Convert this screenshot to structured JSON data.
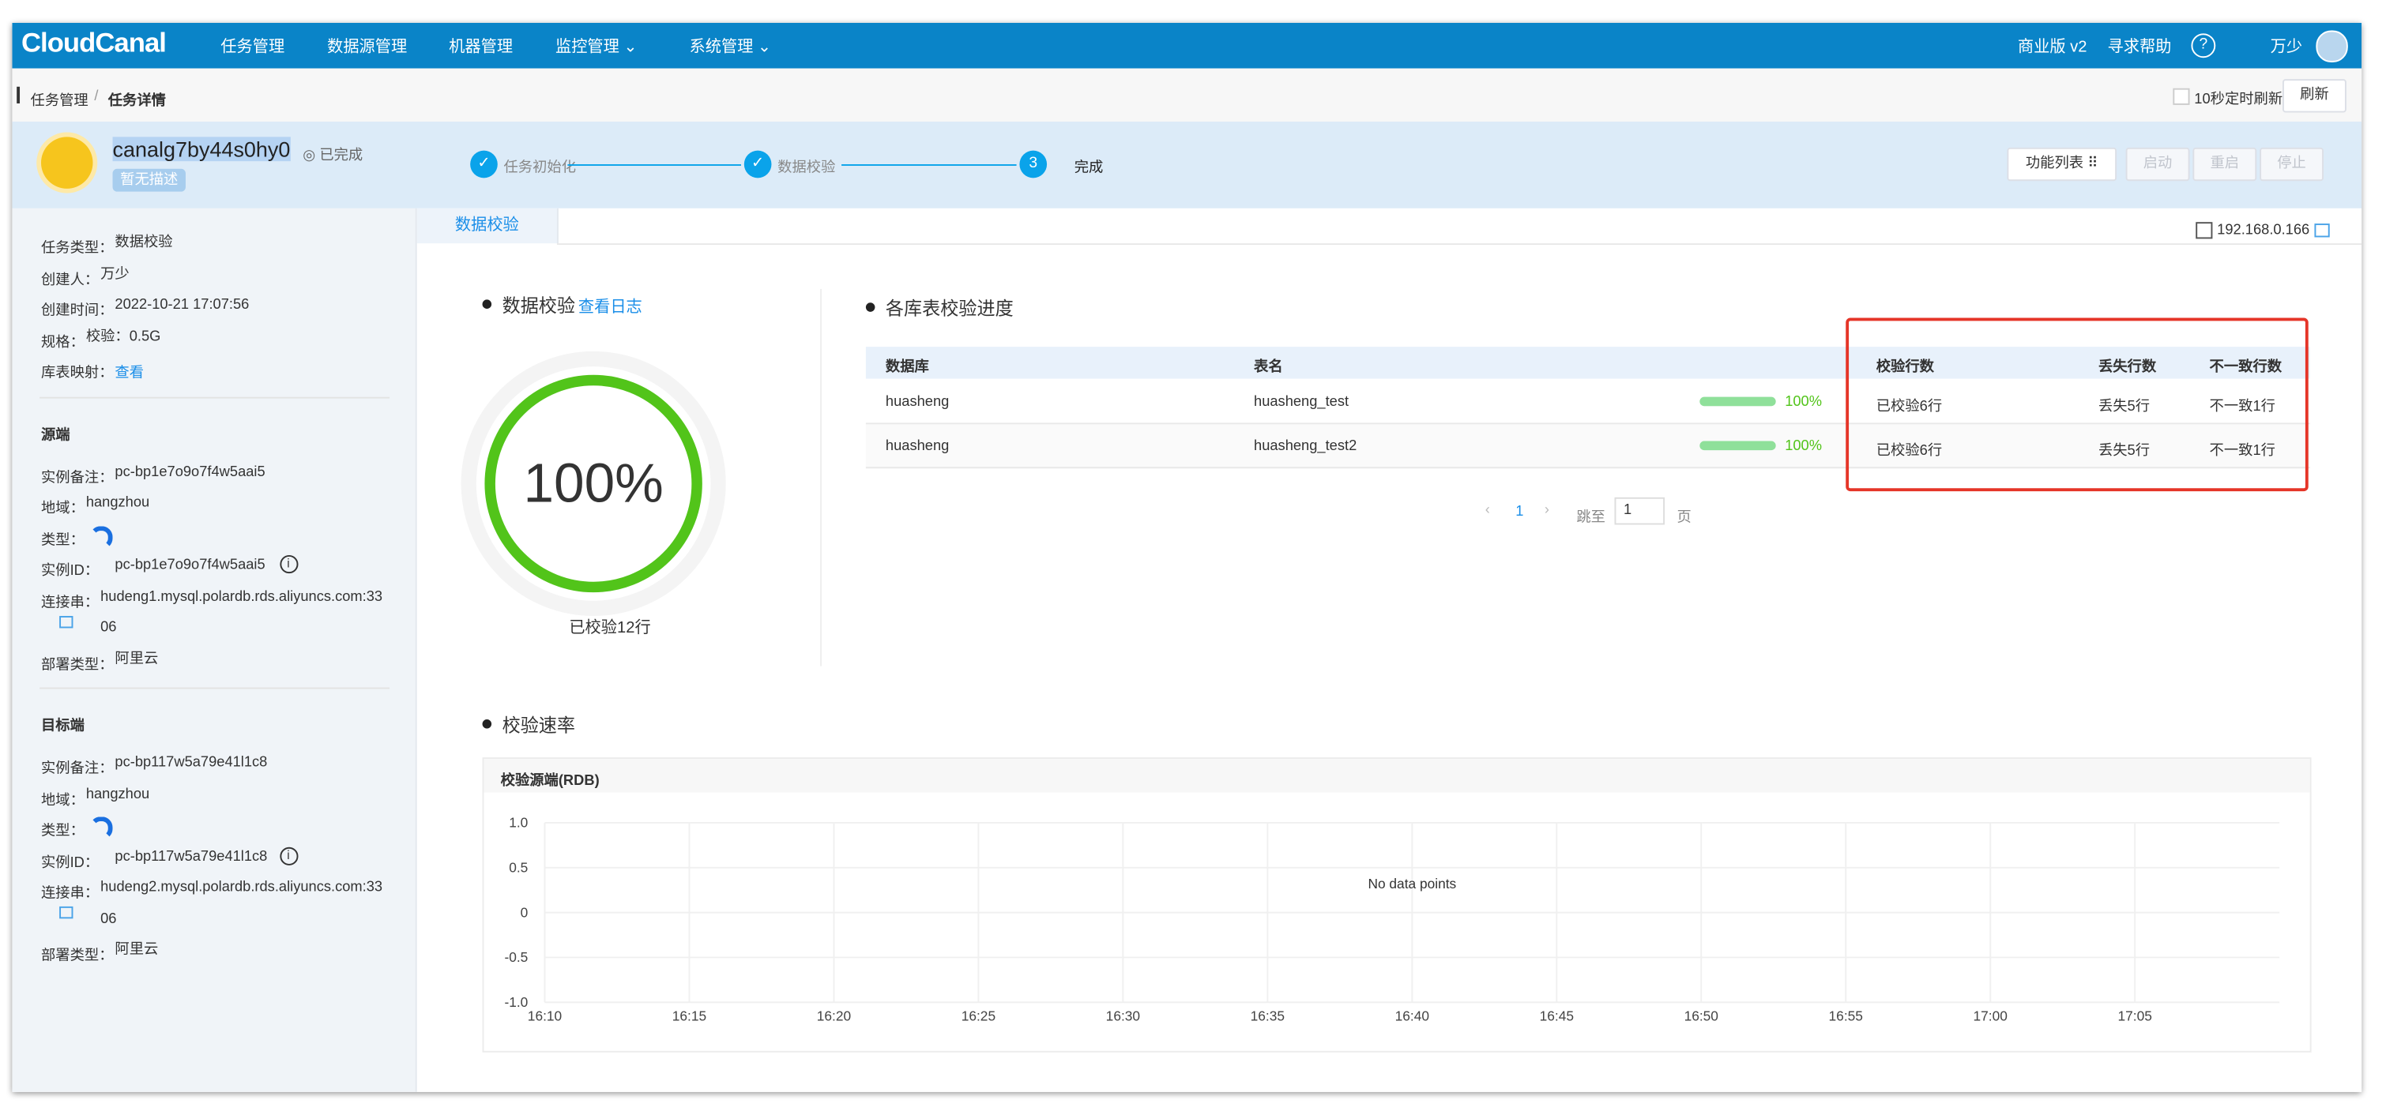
{
  "nav": {
    "logo": "CloudCanal",
    "menu": [
      "任务管理",
      "数据源管理",
      "机器管理",
      "监控管理",
      "系统管理"
    ],
    "edition": "商业版 v2",
    "help": "寻求帮助",
    "help_icon": "?",
    "user": "万少"
  },
  "breadcrumb": [
    "任务管理",
    "任务详情"
  ],
  "auto_refresh": "10秒定时刷新",
  "refresh": "刷新",
  "task": {
    "name": "canalg7by44s0hy0",
    "status": "已完成",
    "description": "暂无描述",
    "steps": [
      {
        "label": "任务初始化"
      },
      {
        "label": "数据校验"
      },
      {
        "number": "3",
        "label": "完成"
      }
    ],
    "buttons": [
      "功能列表",
      "启动",
      "重启",
      "停止"
    ]
  },
  "info": [
    {
      "items": [
        {
          "label": "任务类型：",
          "value": "数据校验"
        },
        {
          "label": "创建人：",
          "value": "万少"
        },
        {
          "label": "创建时间：",
          "value": "2022-10-21 17:07:56"
        },
        {
          "label": "规格：",
          "value": "校验：0.5G"
        },
        {
          "label": "库表映射：",
          "link": "查看"
        }
      ]
    },
    {
      "title": "源端",
      "items": [
        {
          "label": "实例备注：",
          "value": "pc-bp1e7o9o7f4w5aai5"
        },
        {
          "label": "地域：",
          "value": "hangzhou"
        },
        {
          "label": "类型：",
          "icon": true
        },
        {
          "label": "实例ID：",
          "value": "pc-bp1e7o9o7f4w5aai5",
          "info": true
        },
        {
          "label": "连接串：",
          "value": "hudeng1.mysql.polardb.rds.aliyuncs.com:3306",
          "copy": true
        },
        {
          "label": "部署类型：",
          "value": "阿里云"
        }
      ]
    },
    {
      "title": "目标端",
      "items": [
        {
          "label": "实例备注：",
          "value": "pc-bp117w5a79e41l1c8"
        },
        {
          "label": "地域：",
          "value": "hangzhou"
        },
        {
          "label": "类型：",
          "icon": true
        },
        {
          "label": "实例ID：",
          "value": "pc-bp117w5a79e41l1c8",
          "info": true
        },
        {
          "label": "连接串：",
          "value": "hudeng2.mysql.polardb.rds.aliyuncs.com:3306",
          "copy": true
        },
        {
          "label": "部署类型：",
          "value": "阿里云"
        }
      ]
    }
  ],
  "tab": "数据校验",
  "host": "192.168.0.166",
  "check": {
    "title": "数据校验",
    "log_link": "查看日志",
    "progress": {
      "value": 100,
      "label": "100%"
    },
    "checked": "已校验12行"
  },
  "progress_table": {
    "title": "各库表校验进度",
    "headers": [
      "数据库",
      "表名",
      "校验行数",
      "丢失行数",
      "不一致行数"
    ],
    "rows": [
      {
        "database": "huasheng",
        "table": "huasheng_test",
        "progress": {
          "value": 100,
          "label": "100%"
        },
        "checked": "已校验6行",
        "missing": "丢失5行",
        "inconsistent": "不一致1行"
      },
      {
        "database": "huasheng",
        "table": "huasheng_test2",
        "progress": {
          "value": 100,
          "label": "100%"
        },
        "checked": "已校验6行",
        "missing": "丢失5行",
        "inconsistent": "不一致1行"
      }
    ]
  },
  "pagination": {
    "current": 1,
    "jump": "跳至",
    "input": 1,
    "page": "页"
  },
  "rate": {
    "title": "校验速率",
    "chart": {
      "type": "line",
      "title": "校验源端(RDB)",
      "empty_text": "No data points",
      "grid": true,
      "ylim": [
        -1,
        1
      ],
      "yticks": [
        {
          "value": 1,
          "label": "1.0"
        },
        0.5,
        0,
        -0.5,
        {
          "value": -1,
          "label": "-1.0"
        }
      ],
      "xticks": [
        "16:10",
        "16:15",
        "16:20",
        "16:25",
        "16:30",
        "16:35",
        "16:40",
        "16:45",
        "16:50",
        "16:55",
        "17:00",
        "17:05"
      ]
    }
  }
}
